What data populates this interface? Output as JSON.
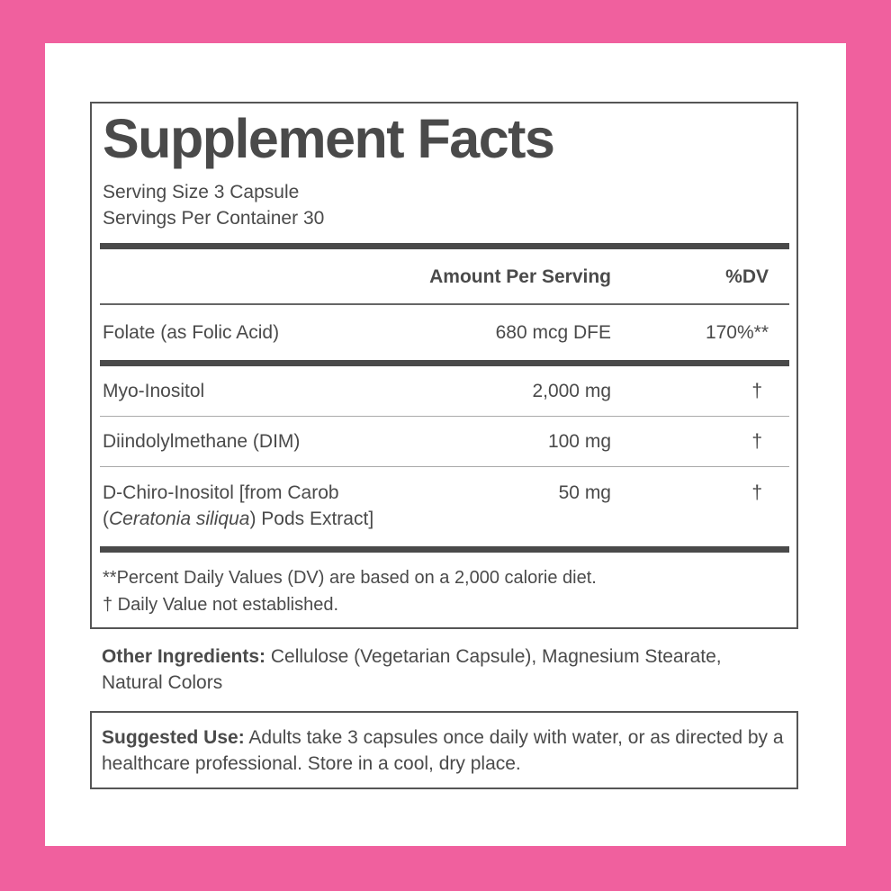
{
  "colors": {
    "background": "#f0609e",
    "text": "#4a4a4a"
  },
  "facts": {
    "title": "Supplement Facts",
    "serving_size": "Serving Size 3 Capsule",
    "servings_per_container": "Servings Per Container 30",
    "header": {
      "amount": "Amount Per Serving",
      "dv": "%DV"
    },
    "rows": [
      {
        "name": "Folate (as Folic Acid)",
        "amount": "680 mcg DFE",
        "dv": "170%**"
      },
      {
        "name": "Myo-Inositol",
        "amount": "2,000 mg",
        "dv": "†"
      },
      {
        "name": "Diindolylmethane (DIM)",
        "amount": "100 mg",
        "dv": "†"
      },
      {
        "name_line1": "D-Chiro-Inositol [from Carob",
        "name_paren_open": "(",
        "name_italic": "Ceratonia siliqua",
        "name_line2_rest": ") Pods Extract]",
        "amount": "50 mg",
        "dv": "†"
      }
    ],
    "footnotes": [
      "**Percent Daily Values (DV) are based on a 2,000 calorie diet.",
      "† Daily Value not established."
    ]
  },
  "other_ingredients": {
    "label": "Other Ingredients:",
    "text": " Cellulose (Vegetarian Capsule), Magnesium Stearate, Natural Colors"
  },
  "suggested_use": {
    "label": "Suggested Use:",
    "text": " Adults take 3 capsules once daily with water, or as directed by a healthcare professional. Store in a cool, dry place."
  }
}
